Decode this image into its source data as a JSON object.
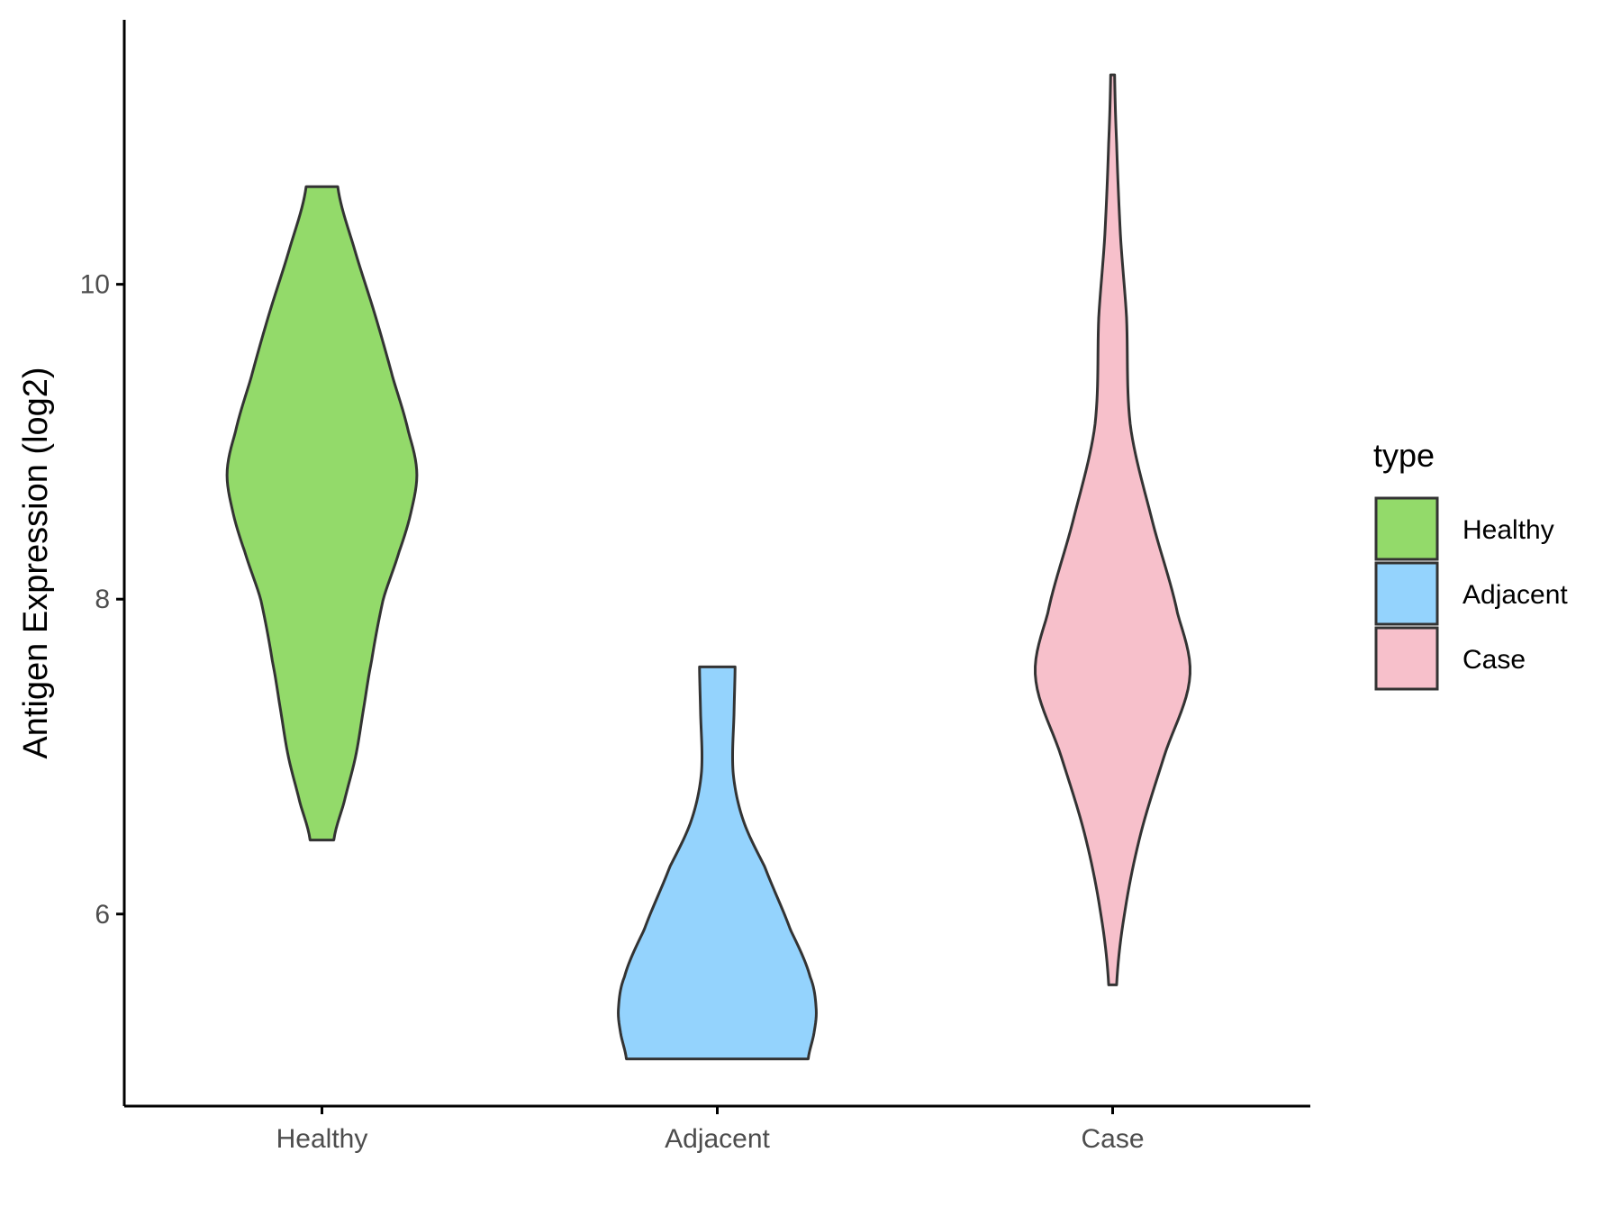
{
  "chart_data": {
    "type": "violin",
    "ylabel": "Antigen Expression (log2)",
    "xlabel": "",
    "categories": [
      "Healthy",
      "Adjacent",
      "Case"
    ],
    "yticks": [
      6,
      8,
      10
    ],
    "ylim": [
      4.78,
      11.68
    ],
    "grid": false,
    "legend": {
      "title": "type",
      "placement": "right",
      "entries": [
        "Healthy",
        "Adjacent",
        "Case"
      ]
    },
    "colors": {
      "Healthy": "#93DA6A",
      "Adjacent": "#94D3FD",
      "Case": "#F7C0CB",
      "outline": "#333333",
      "axis": "#000000"
    },
    "series": [
      {
        "category": "Healthy",
        "min": 6.47,
        "max": 10.62,
        "profile": [
          {
            "y": 6.47,
            "w": 0.06
          },
          {
            "y": 6.7,
            "w": 0.11
          },
          {
            "y": 7.0,
            "w": 0.17
          },
          {
            "y": 7.3,
            "w": 0.21
          },
          {
            "y": 7.6,
            "w": 0.25
          },
          {
            "y": 8.0,
            "w": 0.31
          },
          {
            "y": 8.3,
            "w": 0.39
          },
          {
            "y": 8.55,
            "w": 0.45
          },
          {
            "y": 8.8,
            "w": 0.48
          },
          {
            "y": 9.05,
            "w": 0.44
          },
          {
            "y": 9.4,
            "w": 0.36
          },
          {
            "y": 9.8,
            "w": 0.27
          },
          {
            "y": 10.2,
            "w": 0.17
          },
          {
            "y": 10.62,
            "w": 0.08
          }
        ]
      },
      {
        "category": "Adjacent",
        "min": 5.08,
        "max": 7.57,
        "profile": [
          {
            "y": 5.08,
            "w": 0.46
          },
          {
            "y": 5.25,
            "w": 0.49
          },
          {
            "y": 5.4,
            "w": 0.5
          },
          {
            "y": 5.6,
            "w": 0.47
          },
          {
            "y": 5.9,
            "w": 0.37
          },
          {
            "y": 6.3,
            "w": 0.24
          },
          {
            "y": 6.6,
            "w": 0.13
          },
          {
            "y": 6.9,
            "w": 0.08
          },
          {
            "y": 7.3,
            "w": 0.085
          },
          {
            "y": 7.57,
            "w": 0.09
          }
        ]
      },
      {
        "category": "Case",
        "min": 5.55,
        "max": 11.33,
        "profile": [
          {
            "y": 5.55,
            "w": 0.02
          },
          {
            "y": 6.0,
            "w": 0.06
          },
          {
            "y": 6.5,
            "w": 0.14
          },
          {
            "y": 7.0,
            "w": 0.26
          },
          {
            "y": 7.5,
            "w": 0.39
          },
          {
            "y": 7.9,
            "w": 0.33
          },
          {
            "y": 8.5,
            "w": 0.2
          },
          {
            "y": 9.1,
            "w": 0.09
          },
          {
            "y": 9.8,
            "w": 0.07
          },
          {
            "y": 10.3,
            "w": 0.04
          },
          {
            "y": 10.9,
            "w": 0.02
          },
          {
            "y": 11.33,
            "w": 0.01
          }
        ]
      }
    ]
  }
}
